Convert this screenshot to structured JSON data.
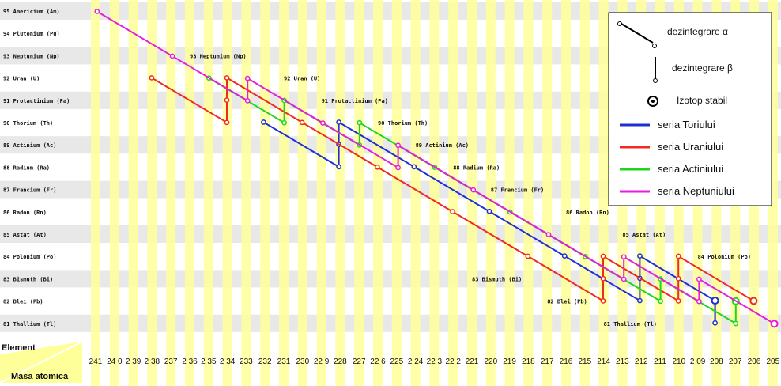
{
  "masses": [
    241,
    240,
    239,
    238,
    237,
    236,
    235,
    234,
    233,
    232,
    231,
    230,
    229,
    228,
    227,
    226,
    225,
    224,
    223,
    222,
    221,
    220,
    219,
    218,
    217,
    216,
    215,
    214,
    213,
    212,
    211,
    210,
    209,
    208,
    207,
    206,
    205
  ],
  "mass_labels": [
    "241",
    "24 0",
    "2 39",
    "2 38",
    "237",
    "2 36",
    "2 35",
    "2 34",
    "233",
    "232",
    "231",
    "230",
    "22 9",
    "228",
    "227",
    "22 6",
    "225",
    "2 24",
    "22 3",
    "22 2",
    "221",
    "220",
    "219",
    "218",
    "217",
    "216",
    "215",
    "214",
    "213",
    "212",
    "211",
    "210",
    "2 09",
    "208",
    "207",
    "206",
    "205"
  ],
  "elements": [
    {
      "z": 95,
      "label": "95 Americium (Am)"
    },
    {
      "z": 94,
      "label": "94 Plutonium (Pu)"
    },
    {
      "z": 93,
      "label": "93 Neptunium (Np)"
    },
    {
      "z": 92,
      "label": "92 Uran (U)"
    },
    {
      "z": 91,
      "label": "91 Protactinium (Pa)"
    },
    {
      "z": 90,
      "label": "90 Thorium (Th)"
    },
    {
      "z": 89,
      "label": "89 Actinium (Ac)"
    },
    {
      "z": 88,
      "label": "88 Radium (Ra)"
    },
    {
      "z": 87,
      "label": "87 Francium (Fr)"
    },
    {
      "z": 86,
      "label": "86 Radon (Rn)"
    },
    {
      "z": 85,
      "label": "85 Astat (At)"
    },
    {
      "z": 84,
      "label": "84 Polonium (Po)"
    },
    {
      "z": 83,
      "label": "83 Bismuth (Bi)"
    },
    {
      "z": 82,
      "label": "82 Blei (Pb)"
    },
    {
      "z": 81,
      "label": "81 Thallium (Tl)"
    }
  ],
  "inline_labels": [
    {
      "mass": 236,
      "z": 93,
      "text": "93 Neptunium (Np)"
    },
    {
      "mass": 231,
      "z": 92,
      "text": "92 Uran (U)"
    },
    {
      "mass": 229,
      "z": 91,
      "text": "91 Protactinium (Pa)"
    },
    {
      "mass": 226,
      "z": 90,
      "text": "90 Thorium (Th)"
    },
    {
      "mass": 224,
      "z": 89,
      "text": "89 Actinium (Ac)"
    },
    {
      "mass": 222,
      "z": 88,
      "text": "88 Radium (Ra)"
    },
    {
      "mass": 220,
      "z": 87,
      "text": "87 Francium (Fr)"
    },
    {
      "mass": 216,
      "z": 86,
      "text": "86 Radon (Rn)"
    },
    {
      "mass": 213,
      "z": 85,
      "text": "85 Astat (At)"
    },
    {
      "mass": 209,
      "z": 84,
      "text": "84 Polonium (Po)"
    },
    {
      "mass": 221,
      "z": 83,
      "text": "83 Bismuth (Bi)"
    },
    {
      "mass": 217,
      "z": 82,
      "text": "82 Blei (Pb)"
    },
    {
      "mass": 214,
      "z": 81,
      "text": "81 Thallium (Tl)"
    }
  ],
  "corner": {
    "element_label": "Element",
    "mass_label": "Masa atomica"
  },
  "legend": {
    "alpha_label": "dezintegrare α",
    "beta_label": "dezintegrare β",
    "stable_label": "Izotop stabil",
    "series": [
      {
        "name": "seria Toriului",
        "color": "#1f2fd6"
      },
      {
        "name": "seria Uraniului",
        "color": "#ef2a1e"
      },
      {
        "name": "seria Actiniului",
        "color": "#1ed61e"
      },
      {
        "name": "seria Neptuniului",
        "color": "#e41edc"
      }
    ]
  },
  "colors": {
    "band": "#ffff99",
    "stripe": "#e8e8e8",
    "legend_border": "#000000"
  },
  "chains": [
    {
      "series": "seria Toriului",
      "color": "#1f2fd6",
      "nodes": [
        [
          232,
          90
        ],
        [
          228,
          88
        ],
        [
          228,
          89
        ],
        [
          228,
          90
        ],
        [
          224,
          88
        ],
        [
          220,
          86
        ],
        [
          216,
          84
        ],
        [
          212,
          82
        ],
        [
          212,
          83
        ],
        [
          212,
          84
        ],
        [
          208,
          82
        ],
        [
          208,
          81
        ],
        [
          208,
          82
        ]
      ]
    },
    {
      "series": "seria Uraniului",
      "color": "#ef2a1e",
      "nodes": [
        [
          238,
          92
        ],
        [
          234,
          90
        ],
        [
          234,
          91
        ],
        [
          234,
          92
        ],
        [
          230,
          90
        ],
        [
          226,
          88
        ],
        [
          222,
          86
        ],
        [
          218,
          84
        ],
        [
          214,
          82
        ],
        [
          214,
          83
        ],
        [
          214,
          84
        ],
        [
          210,
          82
        ],
        [
          210,
          83
        ],
        [
          210,
          84
        ],
        [
          206,
          82
        ]
      ]
    },
    {
      "series": "seria Actiniului",
      "color": "#1ed61e",
      "nodes": [
        [
          235,
          92
        ],
        [
          231,
          90
        ],
        [
          231,
          91
        ],
        [
          227,
          89
        ],
        [
          227,
          90
        ],
        [
          223,
          88
        ],
        [
          219,
          86
        ],
        [
          215,
          84
        ],
        [
          211,
          82
        ],
        [
          211,
          83
        ],
        [
          207,
          81
        ],
        [
          207,
          82
        ]
      ]
    },
    {
      "series": "seria Neptuniului",
      "color": "#e41edc",
      "nodes": [
        [
          241,
          95
        ],
        [
          237,
          93
        ],
        [
          233,
          91
        ],
        [
          233,
          92
        ],
        [
          229,
          90
        ],
        [
          225,
          88
        ],
        [
          225,
          89
        ],
        [
          221,
          87
        ],
        [
          217,
          85
        ],
        [
          213,
          83
        ],
        [
          213,
          84
        ],
        [
          209,
          82
        ],
        [
          209,
          83
        ],
        [
          205,
          81
        ]
      ]
    }
  ]
}
